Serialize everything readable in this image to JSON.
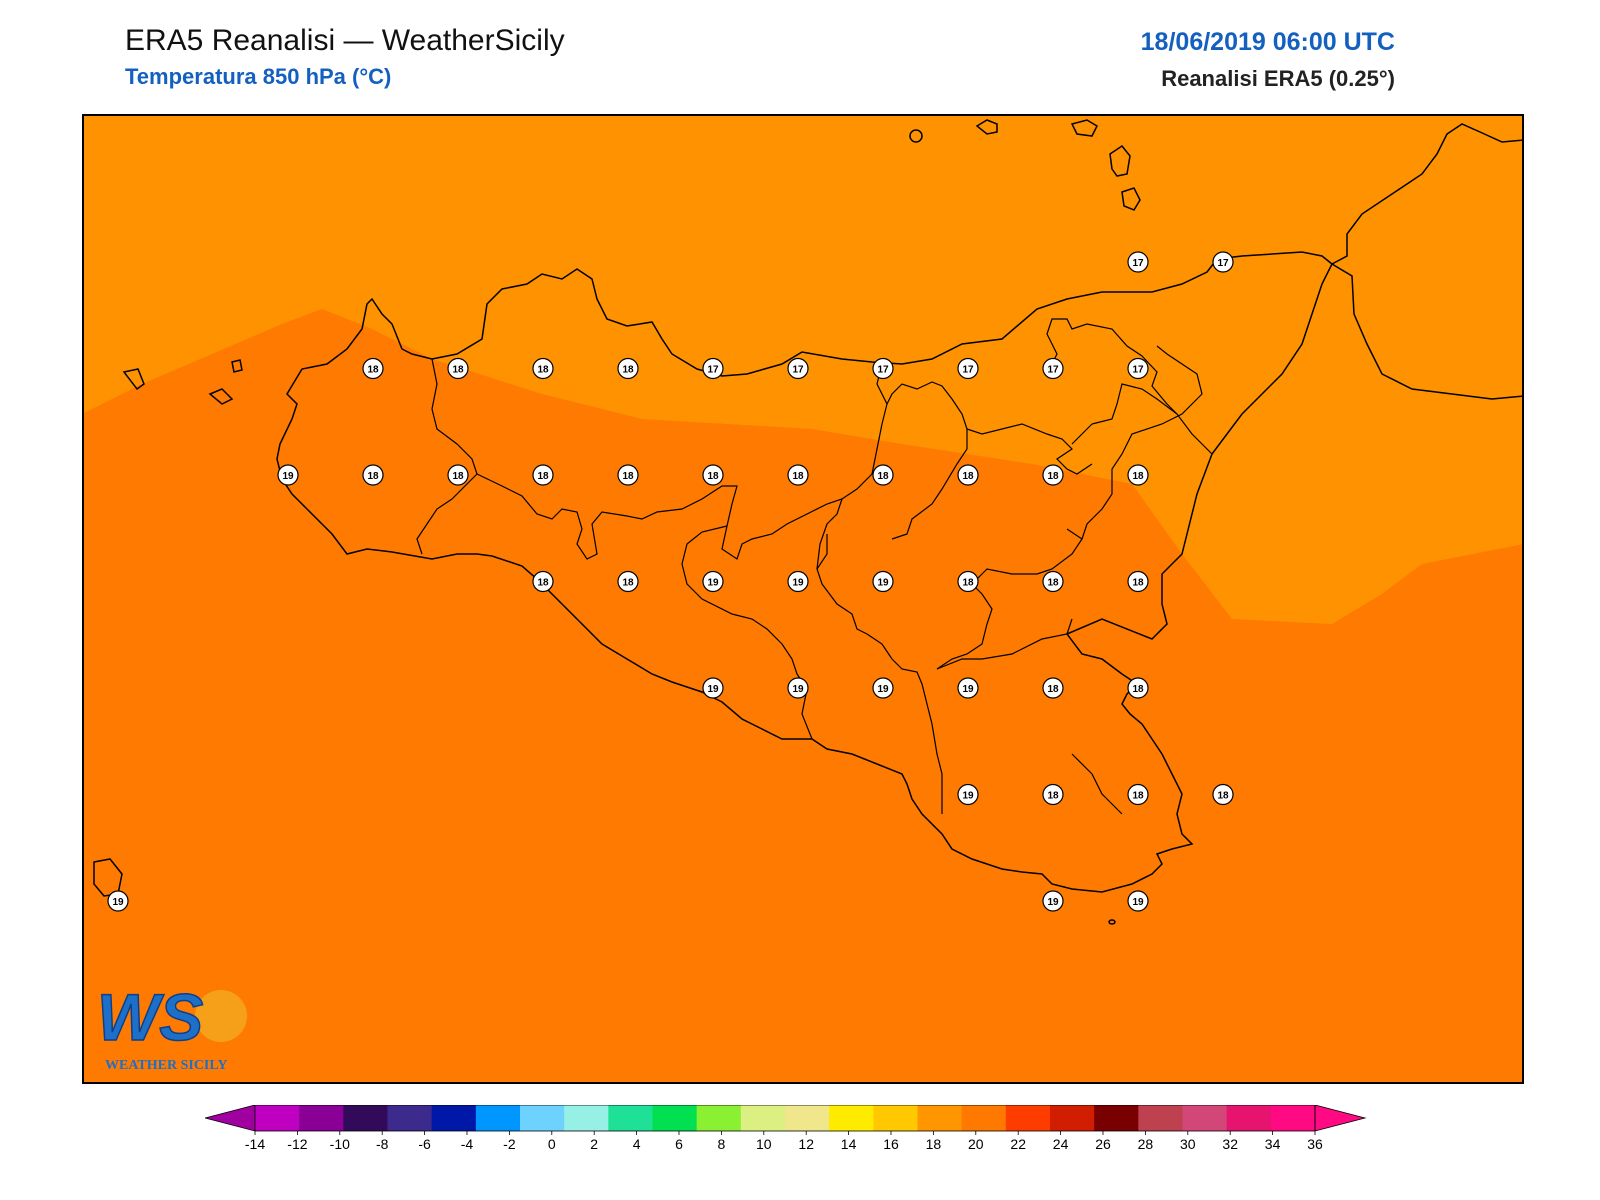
{
  "header": {
    "title": "ERA5 Reanalisi — WeatherSicily",
    "subtitle": "Temperatura 850 hPa (°C)",
    "datetime": "18/06/2019 06:00 UTC",
    "source": "Reanalisi ERA5 (0.25°)"
  },
  "logo": {
    "letters": "WS",
    "text": "WEATHER SICILY"
  },
  "colors": {
    "field_16_18": "#ff9200",
    "field_18_20": "#ff7a00",
    "coastline": "#000000"
  },
  "stations": [
    {
      "lat": 38.0,
      "lon": 12.5,
      "value": "18"
    },
    {
      "lat": 38.0,
      "lon": 13.0,
      "value": "18"
    },
    {
      "lat": 38.0,
      "lon": 13.5,
      "value": "18"
    },
    {
      "lat": 38.0,
      "lon": 14.0,
      "value": "18"
    },
    {
      "lat": 38.0,
      "lon": 14.5,
      "value": "17"
    },
    {
      "lat": 38.0,
      "lon": 15.0,
      "value": "17"
    },
    {
      "lat": 38.0,
      "lon": 15.5,
      "value": "17"
    },
    {
      "lat": 38.0,
      "lon": 16.0,
      "value": "17"
    },
    {
      "lat": 38.0,
      "lon": 16.5,
      "value": "17"
    },
    {
      "lat": 38.0,
      "lon": 17.0,
      "value": "17"
    },
    {
      "lat": 38.25,
      "lon": 17.0,
      "value": "17"
    },
    {
      "lat": 38.25,
      "lon": 17.5,
      "value": "17"
    },
    {
      "lat": 37.75,
      "lon": 12.0,
      "value": "19"
    },
    {
      "lat": 37.75,
      "lon": 12.5,
      "value": "18"
    },
    {
      "lat": 37.75,
      "lon": 13.0,
      "value": "18"
    },
    {
      "lat": 37.75,
      "lon": 13.5,
      "value": "18"
    },
    {
      "lat": 37.75,
      "lon": 14.0,
      "value": "18"
    },
    {
      "lat": 37.75,
      "lon": 14.5,
      "value": "18"
    },
    {
      "lat": 37.75,
      "lon": 15.0,
      "value": "18"
    },
    {
      "lat": 37.75,
      "lon": 15.5,
      "value": "18"
    },
    {
      "lat": 37.75,
      "lon": 16.0,
      "value": "18"
    },
    {
      "lat": 37.75,
      "lon": 16.5,
      "value": "18"
    },
    {
      "lat": 37.75,
      "lon": 17.0,
      "value": "18"
    },
    {
      "lat": 37.5,
      "lon": 13.5,
      "value": "18"
    },
    {
      "lat": 37.5,
      "lon": 14.0,
      "value": "18"
    },
    {
      "lat": 37.5,
      "lon": 14.5,
      "value": "19"
    },
    {
      "lat": 37.5,
      "lon": 15.0,
      "value": "19"
    },
    {
      "lat": 37.5,
      "lon": 15.5,
      "value": "19"
    },
    {
      "lat": 37.5,
      "lon": 16.0,
      "value": "18"
    },
    {
      "lat": 37.5,
      "lon": 16.5,
      "value": "18"
    },
    {
      "lat": 37.5,
      "lon": 17.0,
      "value": "18"
    },
    {
      "lat": 37.25,
      "lon": 14.5,
      "value": "19"
    },
    {
      "lat": 37.25,
      "lon": 15.0,
      "value": "19"
    },
    {
      "lat": 37.25,
      "lon": 15.5,
      "value": "19"
    },
    {
      "lat": 37.25,
      "lon": 16.0,
      "value": "19"
    },
    {
      "lat": 37.25,
      "lon": 16.5,
      "value": "18"
    },
    {
      "lat": 37.25,
      "lon": 17.0,
      "value": "18"
    },
    {
      "lat": 37.0,
      "lon": 16.0,
      "value": "19"
    },
    {
      "lat": 37.0,
      "lon": 16.5,
      "value": "18"
    },
    {
      "lat": 37.0,
      "lon": 17.0,
      "value": "18"
    },
    {
      "lat": 37.0,
      "lon": 17.5,
      "value": "18"
    },
    {
      "lat": 36.75,
      "lon": 11.0,
      "value": "19"
    },
    {
      "lat": 36.75,
      "lon": 16.5,
      "value": "19"
    },
    {
      "lat": 36.75,
      "lon": 17.0,
      "value": "19"
    }
  ],
  "colorbar": {
    "ticks": [
      "-14",
      "-12",
      "-10",
      "-8",
      "-6",
      "-4",
      "-2",
      "0",
      "2",
      "4",
      "6",
      "8",
      "10",
      "12",
      "14",
      "16",
      "18",
      "20",
      "22",
      "24",
      "26",
      "28",
      "30",
      "32",
      "34",
      "36"
    ],
    "colors": [
      "#c000c0",
      "#8a0096",
      "#320a5a",
      "#3c2a8c",
      "#0018a8",
      "#0096ff",
      "#6ed2ff",
      "#96f0e6",
      "#1ee096",
      "#00e050",
      "#8cf032",
      "#dcf082",
      "#f0e68c",
      "#ffeb00",
      "#ffc800",
      "#ff9600",
      "#ff7800",
      "#ff3c00",
      "#d21e00",
      "#780000",
      "#be4150",
      "#d24678",
      "#e6146e",
      "#ff0a82"
    ],
    "under_color": "#a000a0",
    "over_color": "#ff0a82"
  }
}
